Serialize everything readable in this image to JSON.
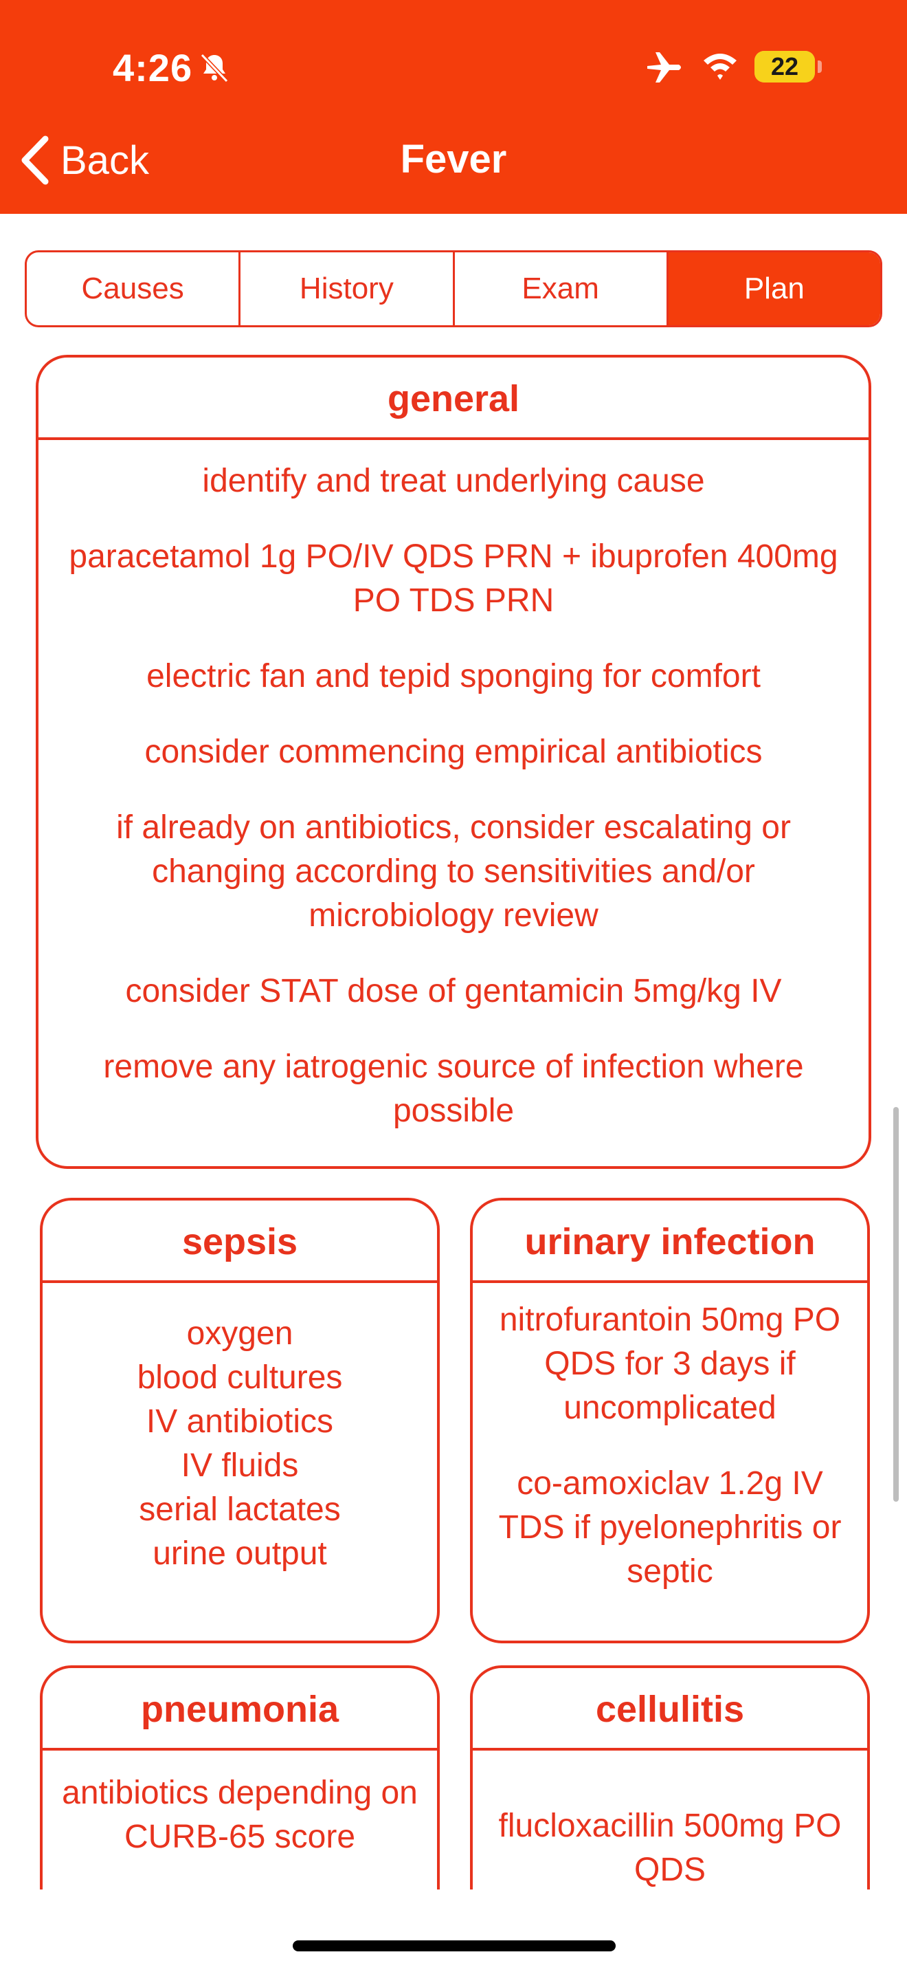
{
  "status_bar": {
    "time": "4:26",
    "battery_level": "22",
    "battery_fraction": 0.22,
    "battery_color": "#f7d21b",
    "icons": [
      "bell-slash-icon",
      "airplane-icon",
      "wifi-icon",
      "battery-icon"
    ]
  },
  "nav": {
    "back_label": "Back",
    "title": "Fever",
    "bar_color": "#f43d0c"
  },
  "tabs": [
    {
      "label": "Causes",
      "active": false
    },
    {
      "label": "History",
      "active": false
    },
    {
      "label": "Exam",
      "active": false
    },
    {
      "label": "Plan",
      "active": true
    }
  ],
  "cards": {
    "general": {
      "title": "general",
      "items": [
        "identify and treat underlying cause",
        "paracetamol 1g PO/IV QDS PRN + ibuprofen 400mg PO TDS PRN",
        "electric fan and tepid sponging for comfort",
        "consider commencing empirical antibiotics",
        "if already on antibiotics, consider escalating or changing according to sensitivities and/or microbiology review",
        "consider STAT dose of gentamicin 5mg/kg IV",
        "remove any iatrogenic source of infection where possible"
      ]
    },
    "sepsis": {
      "title": "sepsis",
      "items": [
        "oxygen",
        "blood cultures",
        "IV antibiotics",
        "IV fluids",
        "serial lactates",
        "urine output"
      ]
    },
    "urinary_infection": {
      "title": "urinary infection",
      "items": [
        "nitrofurantoin 50mg PO QDS for 3 days if uncomplicated",
        "co-amoxiclav 1.2g IV TDS if pyelonephritis or septic"
      ]
    },
    "pneumonia": {
      "title": "pneumonia",
      "items": [
        "antibiotics depending on CURB-65 score"
      ]
    },
    "cellulitis": {
      "title": "cellulitis",
      "items": [
        "flucloxacillin 500mg PO QDS"
      ]
    }
  },
  "accent_color": "#e8331d"
}
